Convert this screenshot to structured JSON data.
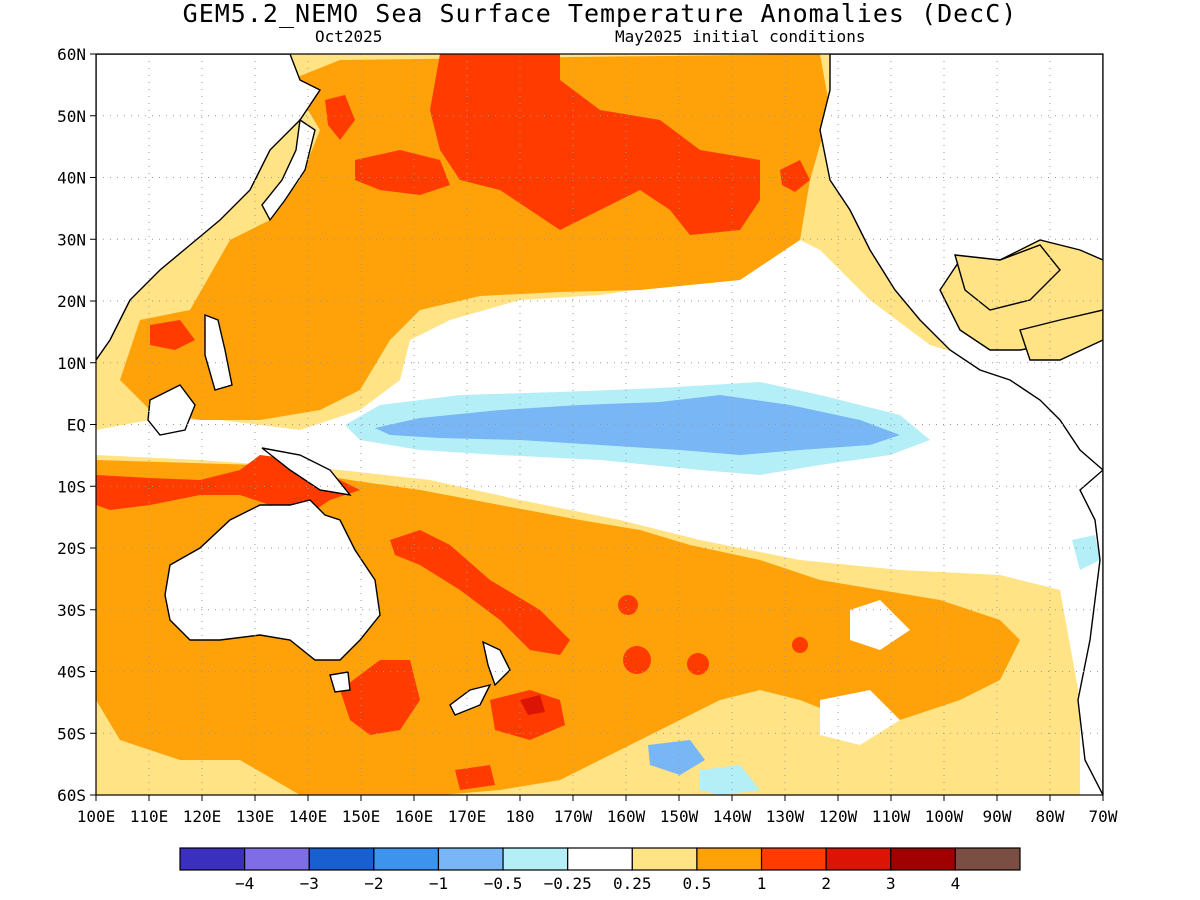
{
  "header": {
    "title": "GEM5.2_NEMO Sea Surface Temperature Anomalies (DecC)",
    "target_month": "Oct2025",
    "init_conditions": "May2025 initial conditions"
  },
  "map": {
    "region": "Pacific Ocean",
    "lon_range": [
      "100E",
      "70W"
    ],
    "lat_range": [
      "60S",
      "60N"
    ],
    "lat_ticks": [
      "60N",
      "50N",
      "40N",
      "30N",
      "20N",
      "10N",
      "EQ",
      "10S",
      "20S",
      "30S",
      "40S",
      "50S",
      "60S"
    ],
    "lon_ticks": [
      "100E",
      "110E",
      "120E",
      "130E",
      "140E",
      "150E",
      "160E",
      "170E",
      "180",
      "170W",
      "160W",
      "150W",
      "140W",
      "130W",
      "120W",
      "110W",
      "100W",
      "90W",
      "80W",
      "70W"
    ],
    "grid": "dotted"
  },
  "colorbar": {
    "colors": [
      "#3b2fbf",
      "#7f6de8",
      "#1a5fd1",
      "#3e93ef",
      "#79b6f5",
      "#b4eef6",
      "#ffffff",
      "#ffe384",
      "#ffa108",
      "#ff3b00",
      "#dc1405",
      "#a00000",
      "#7b4e43"
    ],
    "labels": [
      "−4",
      "−3",
      "−2",
      "−1",
      "−0.5",
      "−0.25",
      "0.25",
      "0.5",
      "1",
      "2",
      "3",
      "4"
    ]
  },
  "palette": {
    "light_yellow": "#ffe384",
    "orange": "#ffa108",
    "red_orange": "#ff3b00",
    "red": "#dc1405",
    "light_cyan": "#b4eef6",
    "light_blue": "#79b6f5",
    "land": "#ffffff",
    "coast": "#000000"
  }
}
